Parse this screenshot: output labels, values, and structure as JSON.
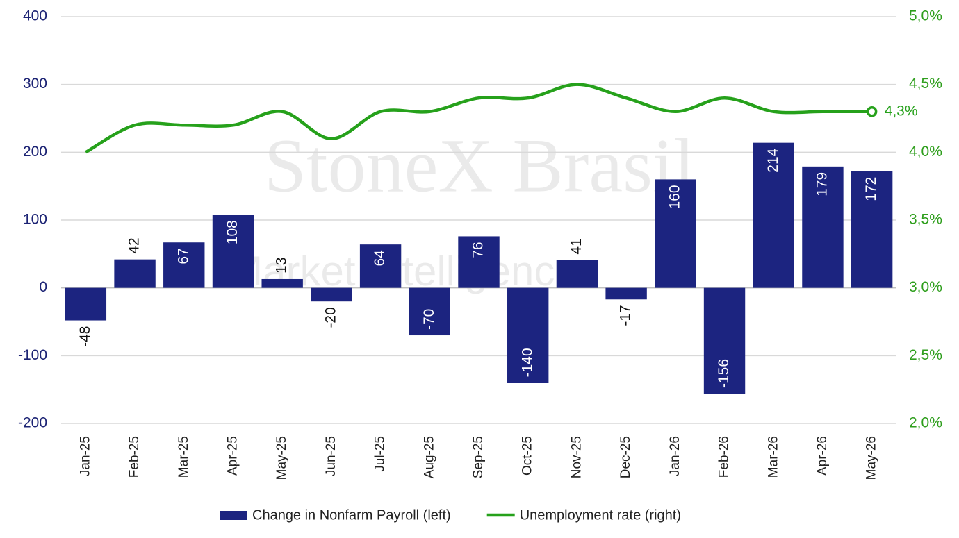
{
  "chart_data": {
    "type": "bar-line",
    "watermark": [
      "StoneX Brasil",
      "Market Intelligence"
    ],
    "categories": [
      "Jan-25",
      "Feb-25",
      "Mar-25",
      "Apr-25",
      "May-25",
      "Jun-25",
      "Jul-25",
      "Aug-25",
      "Sep-25",
      "Oct-25",
      "Nov-25",
      "Dec-25",
      "Jan-26",
      "Feb-26",
      "Mar-26",
      "Apr-26",
      "May-26"
    ],
    "series": [
      {
        "name": "Change in Nonfarm Payroll (left)",
        "type": "bar",
        "color": "#1c2480",
        "values": [
          -48,
          42,
          67,
          108,
          13,
          -20,
          64,
          -70,
          76,
          -140,
          41,
          -17,
          160,
          -156,
          214,
          179,
          172
        ]
      },
      {
        "name": "Unemployment rate (right)",
        "type": "line",
        "axis": "y2",
        "color": "#26a11b",
        "values": [
          4.0,
          4.2,
          4.2,
          4.2,
          4.3,
          4.1,
          4.3,
          4.3,
          4.4,
          4.4,
          4.5,
          4.4,
          4.3,
          4.4,
          4.3,
          4.3,
          4.3
        ],
        "value_labels": [
          null,
          null,
          null,
          null,
          null,
          null,
          null,
          null,
          null,
          null,
          null,
          null,
          null,
          null,
          null,
          null,
          "4,3%"
        ]
      }
    ],
    "ylim": [
      -200,
      400
    ],
    "yticks": [
      -200,
      -100,
      0,
      100,
      200,
      300,
      400
    ],
    "y2lim": [
      2.0,
      5.0
    ],
    "y2ticks": [
      {
        "value": 2.0,
        "label": "2,0%"
      },
      {
        "value": 2.5,
        "label": "2,5%"
      },
      {
        "value": 3.0,
        "label": "3,0%"
      },
      {
        "value": 3.5,
        "label": "3,5%"
      },
      {
        "value": 4.0,
        "label": "4,0%"
      },
      {
        "value": 4.5,
        "label": "4,5%"
      },
      {
        "value": 5.0,
        "label": "5,0%"
      }
    ],
    "grid": true,
    "legend": "bottom"
  }
}
